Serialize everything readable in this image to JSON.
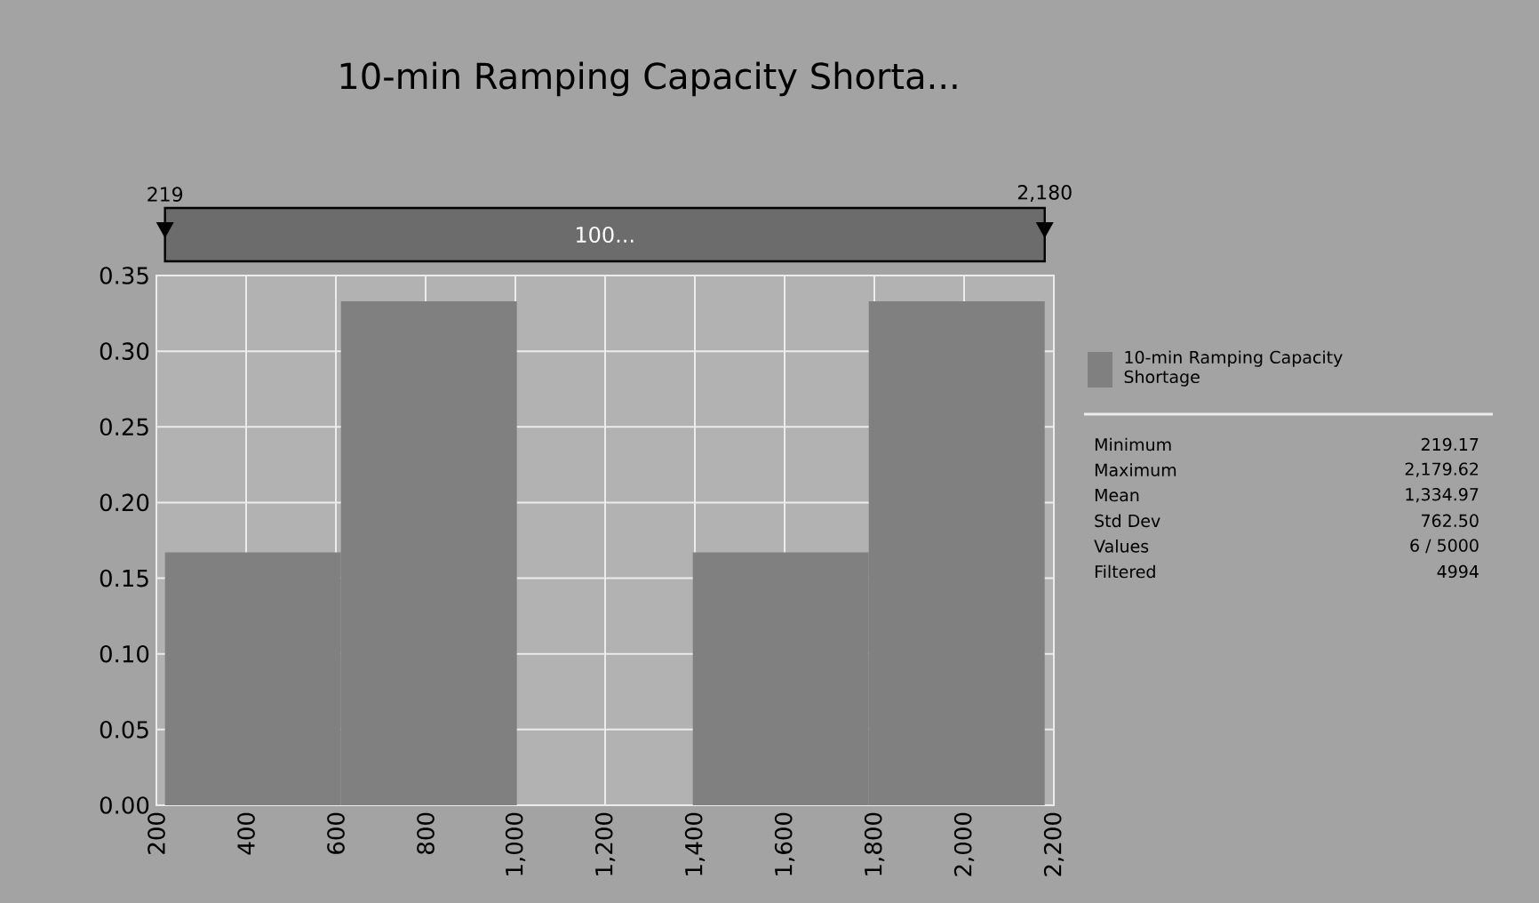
{
  "chart_data": {
    "type": "histogram",
    "title": "10-min Ramping Capacity Shorta...",
    "bins": [
      219.17,
      611.26,
      1003.35,
      1395.44,
      1787.53,
      2179.62
    ],
    "series": [
      {
        "name": "10-min Ramping Capacity Shortage",
        "color": "#808080",
        "values": [
          0.167,
          0.333,
          0,
          0.167,
          0.333
        ]
      }
    ],
    "xlim": [
      200,
      2200
    ],
    "xticks": [
      200,
      400,
      600,
      800,
      {
        "value": 1000,
        "label": "1,000"
      },
      {
        "value": 1200,
        "label": "1,200"
      },
      {
        "value": 1400,
        "label": "1,400"
      },
      {
        "value": 1600,
        "label": "1,600"
      },
      {
        "value": 1800,
        "label": "1,800"
      },
      {
        "value": 2000,
        "label": "2,000"
      },
      {
        "value": 2200,
        "label": "2,200"
      }
    ],
    "ylim": [
      0,
      0.35
    ],
    "yticks": [
      {
        "value": 0,
        "label": "0.00"
      },
      {
        "value": 0.05,
        "label": "0.05"
      },
      {
        "value": 0.1,
        "label": "0.10"
      },
      {
        "value": 0.15,
        "label": "0.15"
      },
      {
        "value": 0.2,
        "label": "0.20"
      },
      {
        "value": 0.25,
        "label": "0.25"
      },
      {
        "value": 0.3,
        "label": "0.30"
      },
      {
        "value": 0.35,
        "label": "0.35"
      }
    ],
    "grid": true,
    "legend": "right",
    "annotations": [
      "219",
      "2,180",
      "100...",
      "Minimum",
      "219.17",
      "Maximum",
      "2,179.62",
      "Mean",
      "1,334.97",
      "Std Dev",
      "762.50",
      "Values",
      "6 / 5000",
      "Filtered",
      "4994"
    ]
  }
}
